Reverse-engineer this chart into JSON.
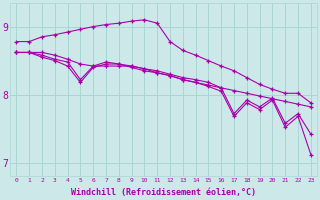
{
  "bg_color": "#cce8e8",
  "grid_color": "#aad4d4",
  "line_color": "#aa00aa",
  "xlabel": "Windchill (Refroidissement éolien,°C)",
  "xlabel_color": "#aa00aa",
  "ylim": [
    6.8,
    9.35
  ],
  "xlim": [
    -0.5,
    23.5
  ],
  "yticks": [
    7,
    8,
    9
  ],
  "series": [
    [
      8.78,
      8.78,
      8.85,
      8.88,
      8.92,
      8.96,
      9.0,
      9.03,
      9.05,
      9.08,
      9.1,
      9.05,
      8.78,
      8.65,
      8.58,
      8.5,
      8.42,
      8.35,
      8.25,
      8.15,
      8.08,
      8.02,
      8.02,
      7.88
    ],
    [
      8.62,
      8.62,
      8.62,
      8.58,
      8.52,
      8.45,
      8.42,
      8.42,
      8.42,
      8.42,
      8.38,
      8.32,
      8.28,
      8.22,
      8.18,
      8.14,
      8.1,
      8.06,
      8.02,
      7.98,
      7.94,
      7.9,
      7.86,
      7.82
    ],
    [
      8.62,
      8.62,
      8.58,
      8.52,
      8.48,
      8.22,
      8.42,
      8.48,
      8.45,
      8.42,
      8.38,
      8.35,
      8.3,
      8.25,
      8.22,
      8.18,
      8.1,
      7.72,
      7.92,
      7.82,
      7.95,
      7.58,
      7.72,
      7.42
    ],
    [
      8.62,
      8.62,
      8.55,
      8.5,
      8.42,
      8.18,
      8.4,
      8.45,
      8.45,
      8.4,
      8.35,
      8.32,
      8.28,
      8.22,
      8.18,
      8.12,
      8.05,
      7.68,
      7.88,
      7.78,
      7.92,
      7.52,
      7.68,
      7.12
    ]
  ]
}
